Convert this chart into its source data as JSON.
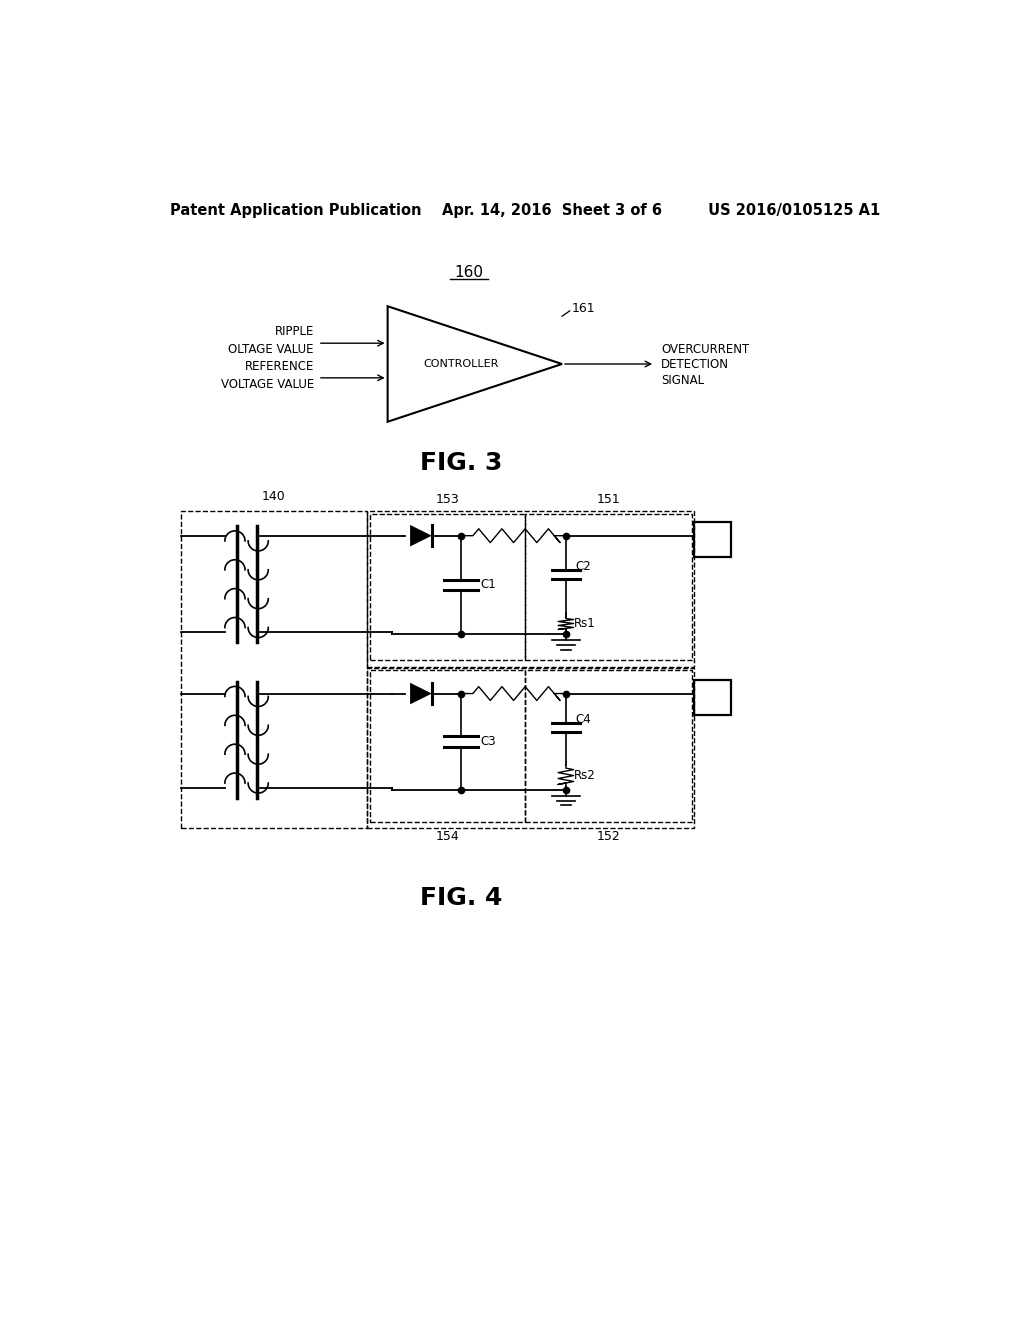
{
  "bg_color": "#ffffff",
  "header_fontsize": 10.5,
  "fig3_label": "160",
  "fig3_caption": "FIG. 3",
  "fig4_caption": "FIG. 4"
}
